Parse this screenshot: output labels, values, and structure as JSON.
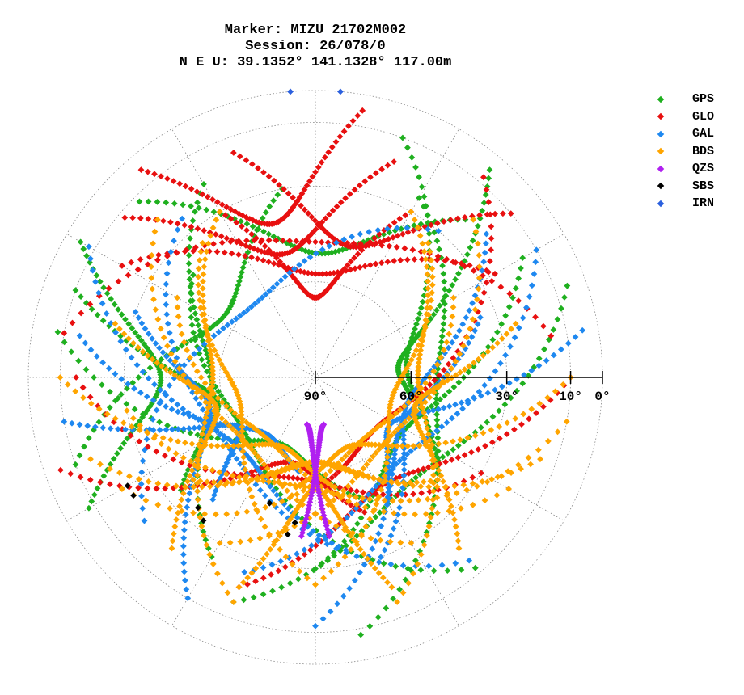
{
  "header": {
    "marker": "Marker: MIZU 21702M002",
    "session": "Session: 26/078/0",
    "position": "N E U: 39.1352° 141.1328° 117.00m"
  },
  "chart_data": {
    "type": "scatter",
    "subtype": "polar-skyplot",
    "title": "Marker: MIZU 21702M002",
    "elevation_tick_labels": [
      "90°",
      "60°",
      "30°",
      "10°",
      "0°"
    ],
    "elevation_ticks": [
      90,
      60,
      30,
      10,
      0
    ],
    "elevation_circles": [
      90,
      60,
      30,
      10,
      0
    ],
    "azimuth_grid": "every 30°",
    "legend_position": "right",
    "series": [
      {
        "name": "GPS",
        "color": "#1fb01f",
        "tracks": [
          [
            315,
            12,
            45,
            20
          ],
          [
            300,
            5,
            240,
            8
          ],
          [
            20,
            10,
            130,
            40
          ],
          [
            60,
            15,
            180,
            30
          ],
          [
            330,
            20,
            210,
            25
          ],
          [
            280,
            8,
            160,
            50
          ],
          [
            40,
            5,
            100,
            60
          ],
          [
            350,
            30,
            250,
            10
          ],
          [
            70,
            6,
            200,
            15
          ],
          [
            310,
            40,
            140,
            12
          ],
          [
            290,
            10,
            230,
            35
          ],
          [
            30,
            25,
            170,
            8
          ]
        ]
      },
      {
        "name": "GLO",
        "color": "#e81010",
        "tracks": [
          [
            300,
            20,
            60,
            25
          ],
          [
            330,
            30,
            30,
            30
          ],
          [
            280,
            10,
            80,
            15
          ],
          [
            250,
            5,
            160,
            45
          ],
          [
            90,
            10,
            200,
            20
          ],
          [
            310,
            12,
            20,
            18
          ],
          [
            340,
            15,
            50,
            10
          ],
          [
            270,
            15,
            120,
            30
          ],
          [
            40,
            8,
            180,
            55
          ],
          [
            320,
            5,
            10,
            5
          ]
        ]
      },
      {
        "name": "GAL",
        "color": "#1e88f0",
        "tracks": [
          [
            300,
            8,
            170,
            35
          ],
          [
            60,
            10,
            200,
            25
          ],
          [
            320,
            25,
            140,
            15
          ],
          [
            40,
            30,
            230,
            20
          ],
          [
            280,
            15,
            190,
            60
          ],
          [
            80,
            5,
            150,
            45
          ],
          [
            290,
            30,
            210,
            10
          ],
          [
            50,
            20,
            160,
            30
          ],
          [
            260,
            10,
            220,
            40
          ],
          [
            70,
            35,
            180,
            12
          ]
        ]
      },
      {
        "name": "BDS",
        "color": "#ffa500",
        "tracks": [
          [
            315,
            20,
            150,
            30
          ],
          [
            45,
            20,
            210,
            30
          ],
          [
            300,
            40,
            120,
            20
          ],
          [
            60,
            40,
            240,
            20
          ],
          [
            270,
            10,
            170,
            55
          ],
          [
            90,
            10,
            190,
            55
          ],
          [
            330,
            30,
            200,
            15
          ],
          [
            30,
            30,
            160,
            15
          ],
          [
            285,
            25,
            220,
            20
          ],
          [
            75,
            25,
            140,
            20
          ],
          [
            250,
            15,
            130,
            40
          ],
          [
            110,
            15,
            230,
            40
          ],
          [
            320,
            35,
            180,
            25
          ],
          [
            40,
            35,
            180,
            25
          ],
          [
            200,
            20,
            160,
            20
          ],
          [
            260,
            30,
            100,
            10
          ]
        ]
      },
      {
        "name": "QZS",
        "color": "#b020f0",
        "tracks": [
          [
            175,
            40,
            190,
            75
          ],
          [
            185,
            40,
            170,
            75
          ]
        ]
      },
      {
        "name": "SBS",
        "color": "#000000",
        "points": [
          [
            237,
            22
          ],
          [
            240,
            22
          ],
          [
            222,
            35
          ],
          [
            218,
            33
          ],
          [
            190,
            40
          ],
          [
            188,
            44
          ],
          [
            200,
            48
          ]
        ]
      },
      {
        "name": "IRN",
        "color": "#2b60de",
        "points": [
          [
            355,
            0
          ],
          [
            5,
            0
          ]
        ]
      }
    ]
  }
}
